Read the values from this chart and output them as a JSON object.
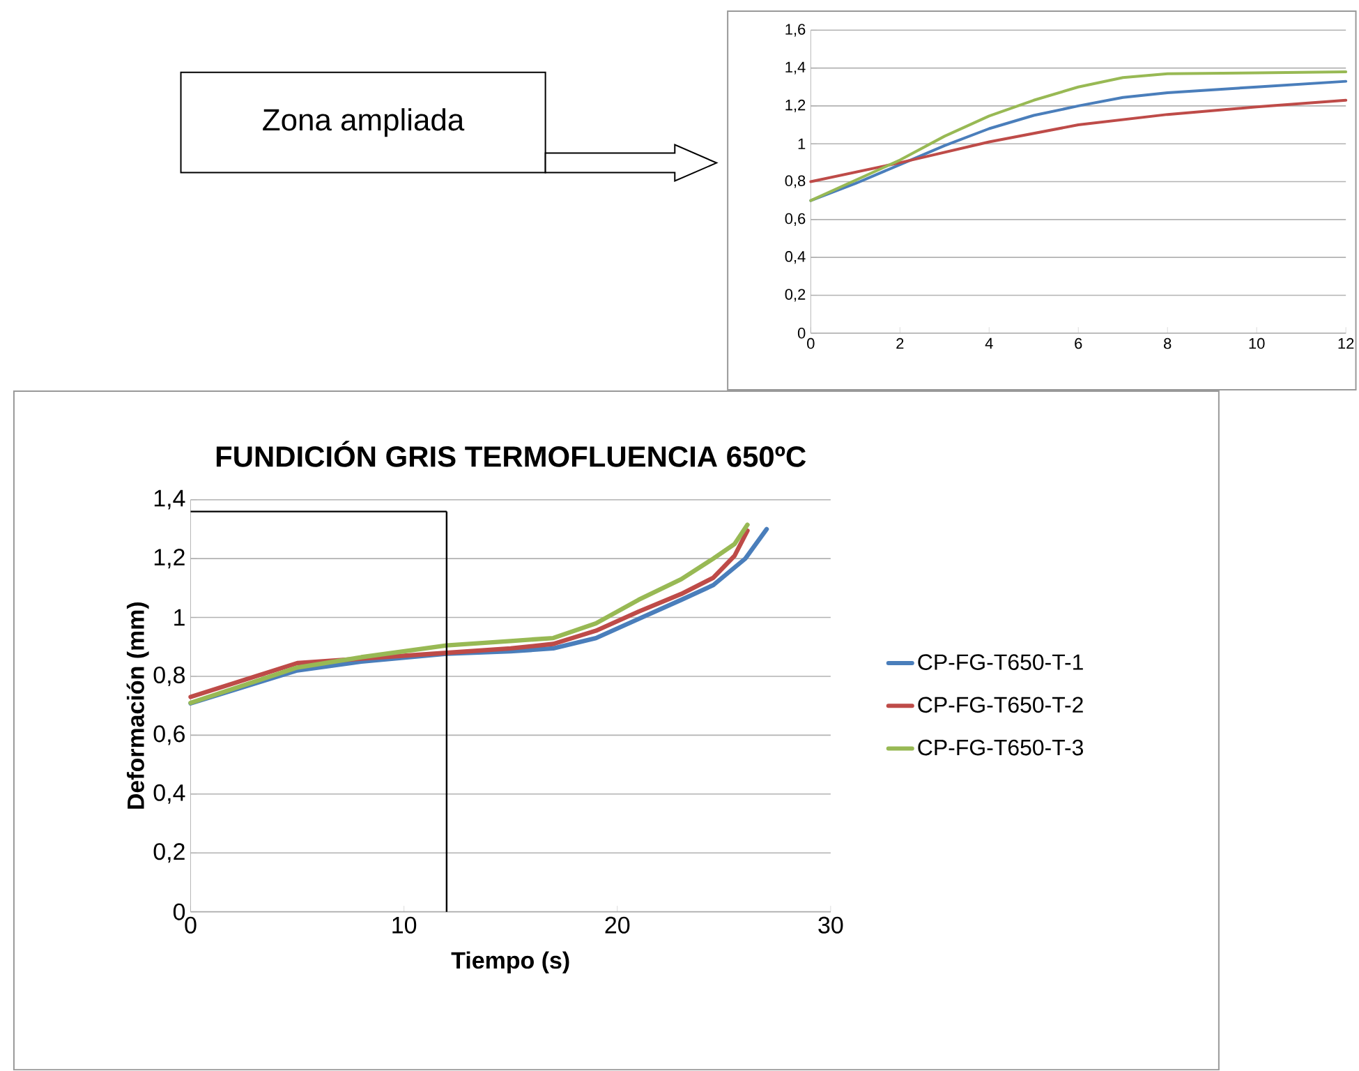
{
  "chart_data": [
    {
      "type": "line",
      "annotations": [
        "Zona ampliada"
      ],
      "xlim": [
        0,
        12
      ],
      "xticks": [
        0,
        2,
        4,
        6,
        8,
        10,
        12
      ],
      "ylim": [
        0,
        1.6
      ],
      "yticks": [
        0,
        {
          "value": 0.2,
          "label": "0,2"
        },
        {
          "value": 0.4,
          "label": "0,4"
        },
        {
          "value": 0.6,
          "label": "0,6"
        },
        {
          "value": 0.8,
          "label": "0,8"
        },
        1,
        {
          "value": 1.2,
          "label": "1,2"
        },
        {
          "value": 1.4,
          "label": "1,4"
        },
        {
          "value": 1.6,
          "label": "1,6"
        }
      ],
      "grid": "y",
      "legend": false,
      "series": [
        {
          "color": "#4a7ebb",
          "x": [
            0,
            1,
            2,
            3,
            4,
            5,
            6,
            7,
            8,
            10,
            12
          ],
          "values": [
            0.7,
            0.79,
            0.89,
            0.99,
            1.08,
            1.15,
            1.2,
            1.245,
            1.27,
            1.3,
            1.33
          ]
        },
        {
          "color": "#be4b48",
          "x": [
            0,
            2,
            4,
            6,
            8,
            10,
            12
          ],
          "values": [
            0.8,
            0.9,
            1.01,
            1.1,
            1.155,
            1.195,
            1.23
          ]
        },
        {
          "color": "#98b954",
          "x": [
            0,
            2,
            3,
            4,
            5,
            6,
            7,
            8,
            10,
            12
          ],
          "values": [
            0.7,
            0.914,
            1.04,
            1.147,
            1.23,
            1.3,
            1.35,
            1.37,
            1.375,
            1.38
          ]
        }
      ]
    },
    {
      "type": "line",
      "title": "FUNDICIÓN GRIS TERMOFLUENCIA  650ºC",
      "xlabel": "Tiempo (s)",
      "ylabel": "Deformación (mm)",
      "xlim": [
        0,
        30
      ],
      "xticks": [
        0,
        10,
        20,
        30
      ],
      "ylim": [
        0,
        1.4
      ],
      "yticks": [
        0,
        {
          "value": 0.2,
          "label": "0,2"
        },
        {
          "value": 0.4,
          "label": "0,4"
        },
        {
          "value": 0.6,
          "label": "0,6"
        },
        {
          "value": 0.8,
          "label": "0,8"
        },
        1,
        {
          "value": 1.2,
          "label": "1,2"
        },
        {
          "value": 1.4,
          "label": "1,4"
        }
      ],
      "grid": "y",
      "legend": "right",
      "ref_lines": [
        {
          "axis": "x",
          "value": 12,
          "color": "#000000"
        },
        {
          "axis": "y",
          "value": 1.36,
          "color": "#000000"
        }
      ],
      "series": [
        {
          "name": "CP-FG-T650-T-1",
          "color": "#4a7ebb",
          "x": [
            0,
            5,
            8,
            12,
            15,
            17,
            19,
            21,
            23,
            24.5,
            26,
            27
          ],
          "values": [
            0.708,
            0.82,
            0.85,
            0.877,
            0.885,
            0.895,
            0.93,
            0.995,
            1.06,
            1.11,
            1.2,
            1.3
          ]
        },
        {
          "name": "CP-FG-T650-T-2",
          "color": "#be4b48",
          "x": [
            0,
            5,
            8,
            12,
            15,
            17,
            19,
            21,
            23,
            24.5,
            25.5,
            26.1
          ],
          "values": [
            0.73,
            0.845,
            0.86,
            0.88,
            0.895,
            0.91,
            0.955,
            1.02,
            1.08,
            1.135,
            1.21,
            1.295
          ]
        },
        {
          "name": "CP-FG-T650-T-3",
          "color": "#98b954",
          "x": [
            0,
            5,
            8,
            12,
            15,
            17,
            19,
            21,
            23,
            24.5,
            25.5,
            26.1
          ],
          "values": [
            0.71,
            0.83,
            0.865,
            0.905,
            0.92,
            0.93,
            0.98,
            1.06,
            1.13,
            1.2,
            1.25,
            1.315
          ]
        }
      ]
    }
  ]
}
